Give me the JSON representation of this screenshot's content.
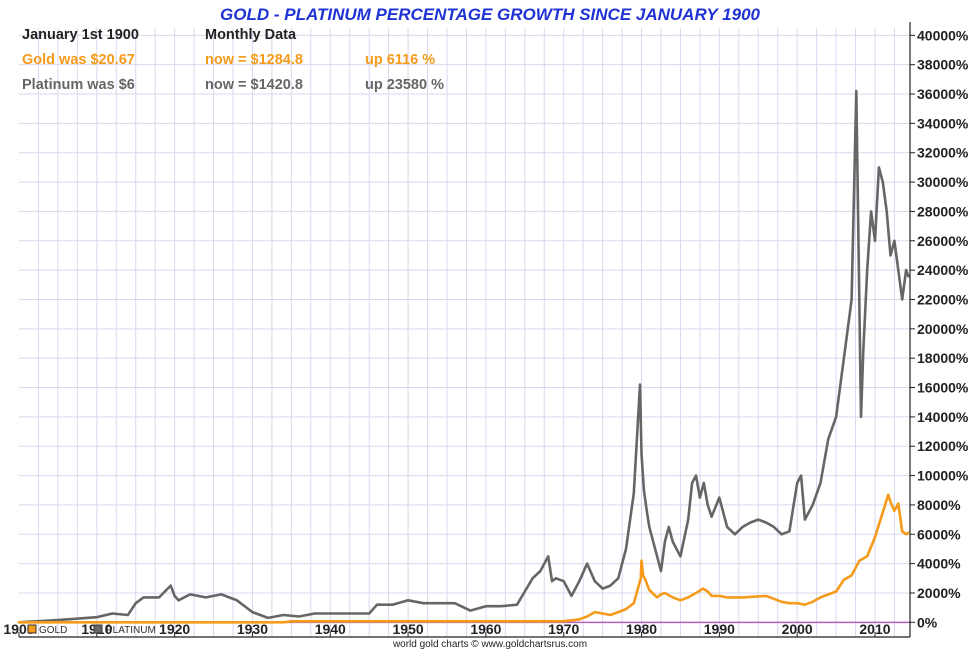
{
  "chart_data": {
    "type": "line",
    "title": "GOLD - PLATINUM PERCENTAGE GROWTH SINCE JANUARY 1900",
    "info": {
      "date": "January 1st 1900",
      "frequency": "Monthly Data",
      "gold": {
        "was": "Gold was $20.67",
        "now": "now = $1284.8",
        "up": "up 6116 %"
      },
      "platinum": {
        "was": "Platinum was $6",
        "now": "now = $1420.8",
        "up": "up 23580 %"
      }
    },
    "xlim": [
      1900,
      2014.5
    ],
    "ylim": [
      -1000,
      40500
    ],
    "x_ticks": [
      1900,
      1910,
      1920,
      1930,
      1940,
      1950,
      1960,
      1970,
      1980,
      1990,
      2000,
      2010
    ],
    "x_tick_labels": [
      "1900",
      "1910",
      "1920",
      "1930",
      "1940",
      "1950",
      "1960",
      "1970",
      "1980",
      "1990",
      "2000",
      "2010"
    ],
    "y_ticks": [
      0,
      2000,
      4000,
      6000,
      8000,
      10000,
      12000,
      14000,
      16000,
      18000,
      20000,
      22000,
      24000,
      26000,
      28000,
      30000,
      32000,
      34000,
      36000,
      38000,
      40000
    ],
    "y_tick_labels": [
      "0%",
      "2000%",
      "4000%",
      "6000%",
      "8000%",
      "10000%",
      "12000%",
      "14000%",
      "16000%",
      "18000%",
      "20000%",
      "22000%",
      "24000%",
      "26000%",
      "28000%",
      "30000%",
      "32000%",
      "34000%",
      "36000%",
      "38000%",
      "40000%"
    ],
    "grid": true,
    "legend_position": "bottom-left",
    "credit": "world gold charts © www.goldchartsrus.com",
    "colors": {
      "gold": "#f59a1a",
      "platinum": "#666666",
      "title": "#1f32d6",
      "grid": "#d8d8ee",
      "zero_line": "#b060c0"
    },
    "series": [
      {
        "name": "GOLD",
        "x": [
          1900,
          1934,
          1935,
          1968,
          1970,
          1972,
          1973,
          1974,
          1975,
          1976,
          1977,
          1978,
          1979,
          1979.9,
          1980,
          1980.2,
          1980.5,
          1981,
          1982,
          1982.5,
          1983,
          1984,
          1985,
          1986,
          1987,
          1987.9,
          1988.5,
          1989,
          1990,
          1991,
          1993,
          1996,
          1997,
          1998,
          1999,
          2000,
          2001,
          2002,
          2003,
          2004,
          2005,
          2006,
          2007,
          2008,
          2009,
          2010,
          2011,
          2011.7,
          2012,
          2012.5,
          2013,
          2013.5,
          2014,
          2014.3
        ],
        "y": [
          0,
          0,
          70,
          70,
          80,
          200,
          400,
          700,
          600,
          500,
          700,
          900,
          1300,
          3000,
          4200,
          3200,
          2900,
          2200,
          1700,
          1900,
          2000,
          1700,
          1500,
          1700,
          2000,
          2300,
          2100,
          1800,
          1800,
          1700,
          1700,
          1800,
          1600,
          1400,
          1300,
          1300,
          1200,
          1400,
          1700,
          1900,
          2100,
          2900,
          3200,
          4200,
          4500,
          5800,
          7500,
          8700,
          8200,
          7600,
          8100,
          6200,
          6000,
          6100
        ]
      },
      {
        "name": "PLATINUM",
        "x": [
          1900,
          1905,
          1910,
          1912,
          1914,
          1915,
          1916,
          1918,
          1919.5,
          1920,
          1920.5,
          1922,
          1924,
          1926,
          1928,
          1930,
          1932,
          1934,
          1936,
          1938,
          1940,
          1945,
          1946,
          1948,
          1950,
          1952,
          1954,
          1956,
          1958,
          1960,
          1962,
          1964,
          1965,
          1966,
          1967,
          1968,
          1968.5,
          1969,
          1970,
          1971,
          1972,
          1973,
          1974,
          1975,
          1976,
          1977,
          1978,
          1979,
          1979.8,
          1980,
          1980.3,
          1980.7,
          1981,
          1982,
          1982.5,
          1983,
          1983.5,
          1984,
          1985,
          1986,
          1986.5,
          1987,
          1987.5,
          1988,
          1988.5,
          1989,
          1990,
          1991,
          1992,
          1993,
          1994,
          1995,
          1996,
          1997,
          1998,
          1999,
          2000,
          2000.5,
          2001,
          2002,
          2003,
          2004,
          2005,
          2006,
          2007,
          2007.6,
          2008.2,
          2008.5,
          2009,
          2009.5,
          2010,
          2010.5,
          2011,
          2011.5,
          2012,
          2012.5,
          2013,
          2013.5,
          2014,
          2014.3
        ],
        "y": [
          0,
          150,
          350,
          600,
          500,
          1300,
          1700,
          1700,
          2500,
          1800,
          1500,
          1900,
          1700,
          1900,
          1500,
          700,
          300,
          500,
          400,
          600,
          600,
          600,
          1200,
          1200,
          1500,
          1300,
          1300,
          1300,
          800,
          1100,
          1100,
          1200,
          2100,
          3000,
          3500,
          4500,
          2800,
          3000,
          2800,
          1800,
          2800,
          4000,
          2800,
          2300,
          2500,
          3000,
          5000,
          8800,
          16200,
          11500,
          9000,
          7500,
          6500,
          4500,
          3500,
          5500,
          6500,
          5500,
          4500,
          7000,
          9500,
          10000,
          8500,
          9500,
          8000,
          7200,
          8500,
          6500,
          6000,
          6500,
          6800,
          7000,
          6800,
          6500,
          6000,
          6200,
          9500,
          10000,
          7000,
          8000,
          9500,
          12500,
          14000,
          18000,
          22000,
          36200,
          14000,
          18500,
          24000,
          28000,
          26000,
          31000,
          30000,
          28000,
          25000,
          26000,
          24000,
          22000,
          24000,
          23580
        ]
      }
    ]
  }
}
